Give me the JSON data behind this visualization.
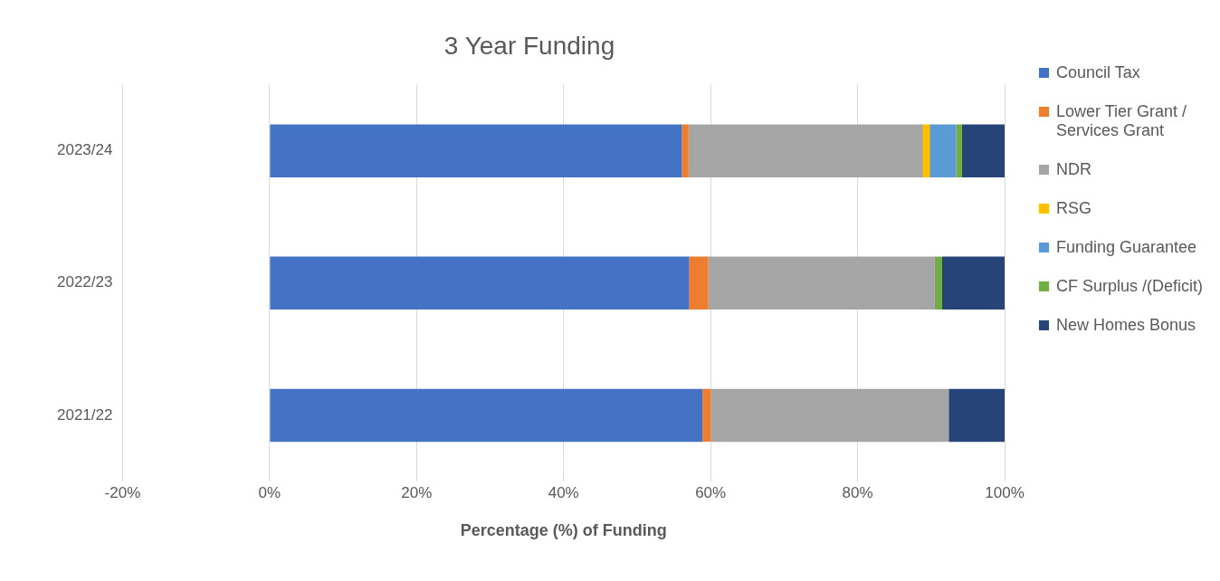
{
  "chart_data": {
    "type": "bar",
    "orientation": "horizontal",
    "stacked": true,
    "title": "3 Year Funding",
    "xlabel": "Percentage (%) of Funding",
    "categories": [
      "2023/24",
      "2022/23",
      "2021/22"
    ],
    "series": [
      {
        "name": "Council Tax",
        "color": "#4472c4",
        "values": [
          56.1,
          57.1,
          58.9
        ]
      },
      {
        "name": "Lower Tier Grant / Services Grant",
        "color": "#ed7d31",
        "values": [
          0.9,
          2.6,
          1.1
        ]
      },
      {
        "name": "NDR",
        "color": "#a5a5a5",
        "values": [
          31.9,
          30.8,
          32.4
        ]
      },
      {
        "name": "RSG",
        "color": "#ffc000",
        "values": [
          0.9,
          null,
          null
        ]
      },
      {
        "name": "Funding Guarantee",
        "color": "#5b9bd5",
        "values": [
          3.6,
          null,
          null
        ]
      },
      {
        "name": "CF Surplus /(Deficit)",
        "color": "#70ad47",
        "values": [
          0.8,
          1.0,
          null
        ]
      },
      {
        "name": "New Homes Bonus",
        "color": "#264478",
        "values": [
          5.8,
          8.5,
          7.6
        ]
      }
    ],
    "xlim": [
      -20,
      100
    ],
    "xticks": [
      {
        "value": -20,
        "label": "-20%"
      },
      {
        "value": 0,
        "label": "0%"
      },
      {
        "value": 20,
        "label": "20%"
      },
      {
        "value": 40,
        "label": "40%"
      },
      {
        "value": 60,
        "label": "60%"
      },
      {
        "value": 80,
        "label": "80%"
      },
      {
        "value": 100,
        "label": "100%"
      }
    ],
    "grid": "x",
    "legend": "right"
  }
}
